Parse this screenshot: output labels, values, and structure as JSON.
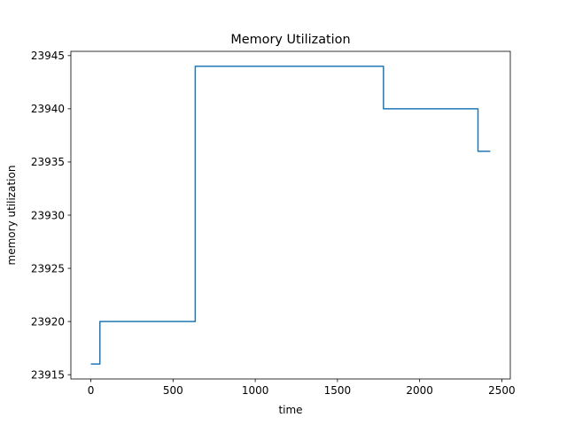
{
  "chart_data": {
    "type": "line",
    "title": "Memory Utilization",
    "xlabel": "time",
    "ylabel": "memory utilization",
    "xlim": [
      -121.5,
      2551.5
    ],
    "ylim": [
      23914.6,
      23945.4
    ],
    "xticks": [
      0,
      500,
      1000,
      1500,
      2000,
      2500
    ],
    "yticks": [
      23915,
      23920,
      23925,
      23930,
      23935,
      23940,
      23945
    ],
    "grid": false,
    "step": "post",
    "line_color": "#1f77b4",
    "series": [
      {
        "x": [
          0,
          55,
          55,
          635,
          635,
          1780,
          1780,
          2355,
          2355,
          2430
        ],
        "y": [
          23916,
          23916,
          23920,
          23920,
          23944,
          23944,
          23940,
          23940,
          23936,
          23936
        ]
      }
    ]
  }
}
